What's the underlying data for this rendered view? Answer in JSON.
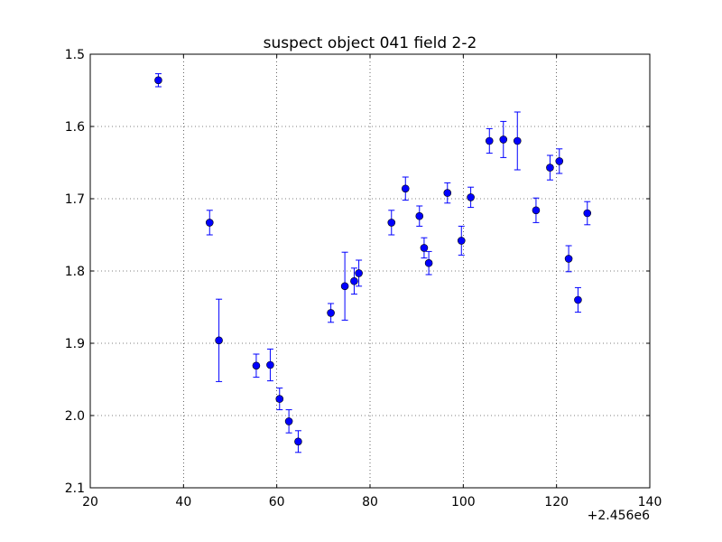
{
  "chart_data": {
    "type": "scatter",
    "title": "suspect object 041 field 2-2",
    "xlabel": "",
    "ylabel": "",
    "x_offset_label": "+2.456e6",
    "xlim": [
      20,
      140
    ],
    "ylim": [
      2.1,
      1.5
    ],
    "y_inverted": true,
    "grid": true,
    "grid_style": "dotted",
    "xticks": [
      20,
      40,
      60,
      80,
      100,
      120,
      140
    ],
    "xtick_labels": [
      "20",
      "40",
      "60",
      "80",
      "100",
      "120",
      "140"
    ],
    "yticks": [
      1.5,
      1.6,
      1.7,
      1.8,
      1.9,
      2.0,
      2.1
    ],
    "ytick_labels": [
      "1.5",
      "1.6",
      "1.7",
      "1.8",
      "1.9",
      "2.0",
      "2.1"
    ],
    "marker_color": "#0000ff",
    "series": [
      {
        "x": [
          34.6,
          45.6,
          47.6,
          55.6,
          58.6,
          60.6,
          62.6,
          64.6,
          71.6,
          74.6,
          76.6,
          77.6,
          84.6,
          87.6,
          90.6,
          91.6,
          92.6,
          96.6,
          99.6,
          101.6,
          105.6,
          108.6,
          111.6,
          115.6,
          118.6,
          120.6,
          122.6,
          124.6,
          126.6
        ],
        "y": [
          1.536,
          1.733,
          1.896,
          1.931,
          1.93,
          1.977,
          2.008,
          2.036,
          1.858,
          1.821,
          1.814,
          1.803,
          1.733,
          1.686,
          1.724,
          1.768,
          1.789,
          1.692,
          1.758,
          1.698,
          1.62,
          1.618,
          1.62,
          1.716,
          1.657,
          1.648,
          1.783,
          1.84,
          1.72
        ],
        "yerr": [
          0.009,
          0.017,
          0.057,
          0.016,
          0.022,
          0.015,
          0.016,
          0.015,
          0.013,
          0.047,
          0.018,
          0.018,
          0.017,
          0.016,
          0.014,
          0.014,
          0.016,
          0.014,
          0.02,
          0.014,
          0.017,
          0.025,
          0.04,
          0.017,
          0.017,
          0.017,
          0.018,
          0.017,
          0.016
        ]
      }
    ]
  }
}
